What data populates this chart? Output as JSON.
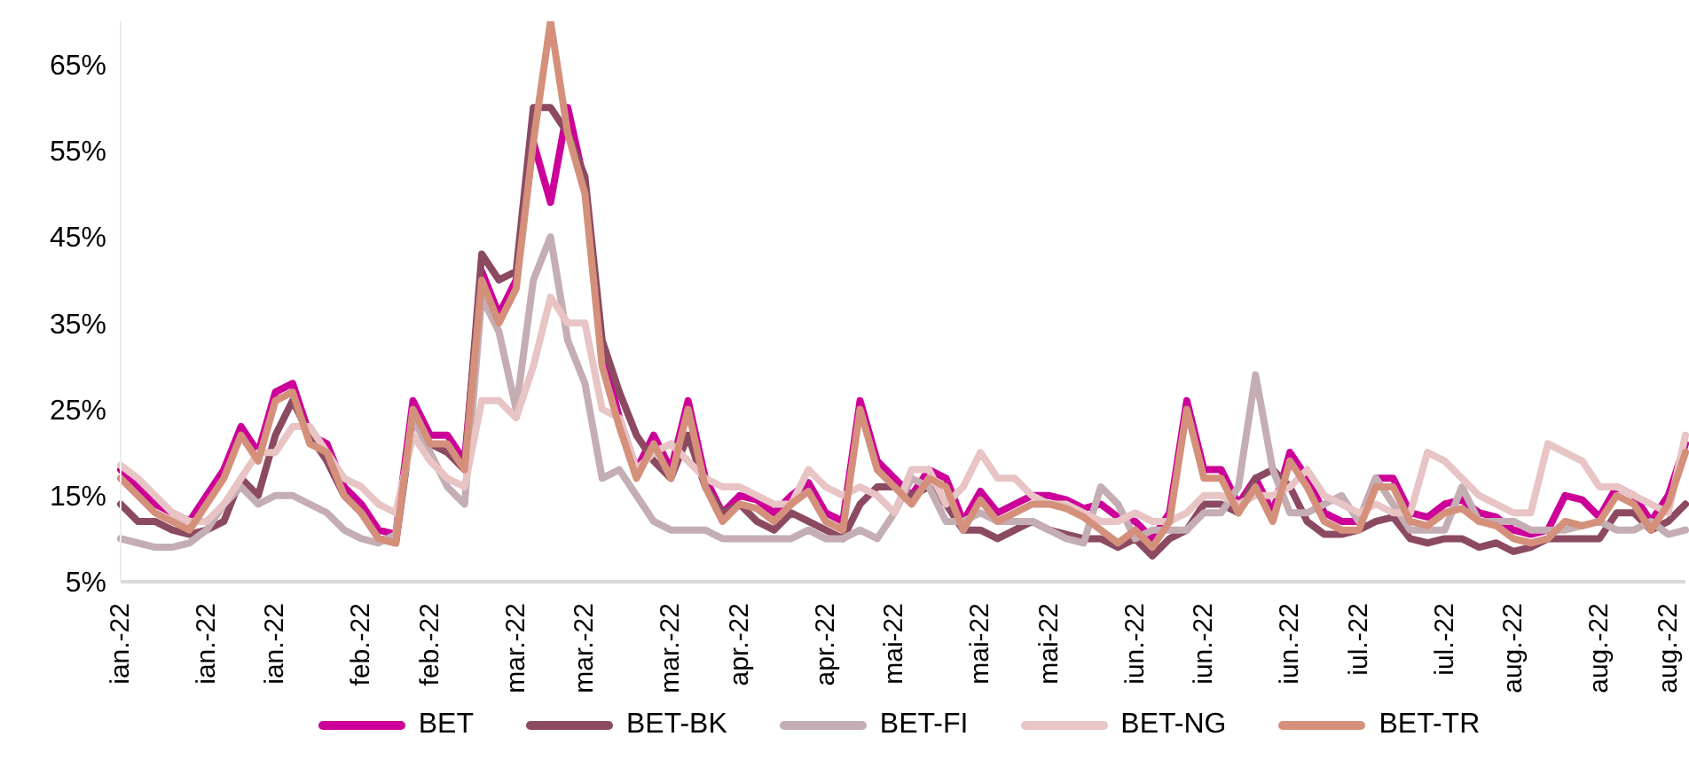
{
  "chart_data": {
    "type": "line",
    "categories": [
      "ian.-22",
      null,
      null,
      null,
      null,
      "ian.-22",
      null,
      null,
      null,
      "ian.-22",
      null,
      null,
      null,
      null,
      "feb.-22",
      null,
      null,
      null,
      "feb.-22",
      null,
      null,
      null,
      null,
      "mar.-22",
      null,
      null,
      null,
      "mar.-22",
      null,
      null,
      null,
      null,
      "mar.-22",
      null,
      null,
      null,
      "apr.-22",
      null,
      null,
      null,
      null,
      "apr.-22",
      null,
      null,
      null,
      "mai-22",
      null,
      null,
      null,
      null,
      "mai-22",
      null,
      null,
      null,
      "mai-22",
      null,
      null,
      null,
      null,
      "iun.-22",
      null,
      null,
      null,
      "iun.-22",
      null,
      null,
      null,
      null,
      "iun.-22",
      null,
      null,
      null,
      "iul.-22",
      null,
      null,
      null,
      null,
      "iul.-22",
      null,
      null,
      null,
      "aug.-22",
      null,
      null,
      null,
      null,
      "aug.-22",
      null,
      null,
      null,
      "aug.-22",
      null
    ],
    "series": [
      {
        "name": "BET",
        "color": "#cc0099",
        "values": [
          18,
          16,
          14,
          13,
          12,
          15,
          18,
          23,
          20,
          27,
          28,
          22,
          21,
          16,
          14,
          11,
          10.5,
          26,
          22,
          22,
          19,
          41,
          36,
          40,
          56,
          49,
          60,
          51,
          32,
          24,
          18,
          22,
          18,
          26,
          17,
          13,
          15,
          14.5,
          13,
          15,
          16.5,
          13,
          12,
          26,
          19,
          17,
          15,
          18,
          17,
          12,
          15.5,
          13,
          14,
          15,
          15,
          14.5,
          13.5,
          14,
          12.5,
          12,
          10,
          13,
          26,
          18,
          18,
          14,
          17,
          13,
          20,
          17,
          13,
          12,
          12,
          17,
          17,
          13,
          12.5,
          14,
          14.5,
          13,
          12.5,
          11,
          10.5,
          11,
          15,
          14.5,
          12.5,
          16,
          15,
          12,
          15,
          21
        ]
      },
      {
        "name": "BET-BK",
        "color": "#8b4a62",
        "values": [
          14,
          12,
          12,
          11,
          10.5,
          11,
          12,
          17,
          15,
          22,
          26,
          22,
          19,
          15,
          13,
          10,
          9.5,
          24,
          21,
          20,
          18,
          43,
          40,
          41,
          60,
          60,
          57,
          52,
          33,
          27,
          22,
          19,
          17,
          22,
          16,
          13,
          14,
          12,
          11,
          13,
          12,
          11,
          10,
          14,
          16,
          16,
          15,
          16,
          14,
          11,
          11,
          10,
          11,
          12,
          11,
          10.5,
          10,
          10,
          9,
          10,
          8,
          10,
          11,
          14,
          14,
          13,
          17,
          18,
          16,
          12,
          10.5,
          10.5,
          11,
          12,
          12.5,
          10,
          9.5,
          10,
          10,
          9,
          9.5,
          8.5,
          9,
          10,
          10,
          10,
          10,
          13,
          13,
          11,
          12,
          14
        ]
      },
      {
        "name": "BET-FI",
        "color": "#c4aeb3",
        "values": [
          10,
          9.5,
          9,
          9,
          9.5,
          11,
          14,
          16,
          14,
          15,
          15,
          14,
          13,
          11,
          10,
          9.5,
          10.5,
          24,
          20,
          16,
          14,
          38,
          34,
          25,
          40,
          45,
          33,
          28,
          17,
          18,
          15,
          12,
          11,
          11,
          11,
          10,
          10,
          10,
          10,
          10,
          11,
          10,
          10,
          11,
          10,
          13,
          17,
          16,
          12,
          12,
          13,
          12,
          12,
          12,
          11,
          10,
          9.5,
          16,
          14,
          10,
          11,
          11,
          11,
          13,
          13,
          16,
          29,
          18,
          13,
          13,
          14,
          15,
          12,
          17,
          14,
          11,
          11,
          11,
          16,
          12,
          12,
          12,
          11,
          11,
          11,
          11.5,
          12,
          11,
          11,
          12,
          10.5,
          11
        ]
      },
      {
        "name": "BET-NG",
        "color": "#e8c4c4",
        "values": [
          18.5,
          17,
          15,
          13,
          12,
          12,
          14,
          17,
          20,
          20,
          23,
          23,
          20,
          17,
          16,
          14,
          13,
          22,
          19,
          17,
          16,
          26,
          26,
          24,
          30,
          38,
          35,
          35,
          25,
          24,
          18,
          20,
          21,
          19,
          17,
          16,
          16,
          15,
          14,
          14,
          18,
          16,
          15,
          16,
          15,
          13,
          18,
          18,
          14,
          16,
          20,
          17,
          17,
          15,
          14,
          14,
          13,
          12,
          12,
          13,
          12,
          12,
          13,
          15,
          15,
          14,
          15,
          15,
          16,
          18,
          15,
          14,
          13,
          14,
          13,
          13,
          20,
          19,
          17,
          15,
          14,
          13,
          13,
          21,
          20,
          19,
          16,
          16,
          15,
          14,
          13,
          22
        ]
      },
      {
        "name": "BET-TR",
        "color": "#d4907a",
        "values": [
          17,
          15,
          13,
          12,
          11,
          14,
          17,
          22,
          19,
          26,
          27,
          21,
          20,
          15,
          13,
          10,
          9.5,
          25,
          21,
          21,
          18,
          40,
          35,
          39,
          56,
          70,
          57,
          50,
          30,
          23,
          17,
          21,
          17,
          25,
          16,
          12,
          14,
          13.5,
          12,
          14,
          15.5,
          12,
          11,
          25,
          18,
          16,
          14,
          17,
          16,
          11,
          14.5,
          12,
          13,
          14,
          14,
          13.5,
          12.5,
          11,
          9.5,
          11,
          9,
          12,
          25,
          17,
          17,
          13,
          16,
          12,
          19,
          16,
          12,
          11,
          11,
          16,
          16,
          12,
          11.5,
          13,
          13.5,
          12,
          11.5,
          10,
          9.5,
          10,
          12,
          11.5,
          12,
          15,
          14,
          11,
          14,
          20
        ]
      }
    ],
    "ylim": [
      5,
      70
    ],
    "yticks": [
      {
        "value": 5,
        "label": "5%"
      },
      {
        "value": 15,
        "label": "15%"
      },
      {
        "value": 25,
        "label": "25%"
      },
      {
        "value": 35,
        "label": "35%"
      },
      {
        "value": 45,
        "label": "45%"
      },
      {
        "value": 55,
        "label": "55%"
      },
      {
        "value": 65,
        "label": "65%"
      }
    ],
    "grid": false,
    "legend": "bottom",
    "marker": "none",
    "line_style": "solid"
  }
}
